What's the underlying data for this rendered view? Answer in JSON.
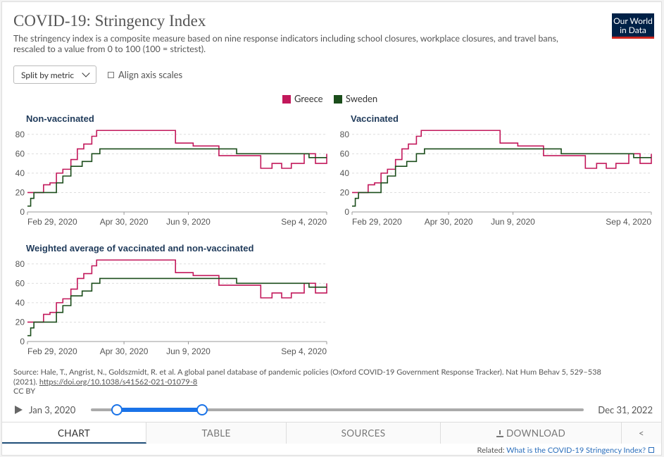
{
  "header": {
    "title": "COVID-19: Stringency Index",
    "subtitle": "The stringency index is a composite measure based on nine response indicators including school closures, workplace closures, and travel bans, rescaled to a value from 0 to 100 (100 = strictest).",
    "logo_line1": "Our World",
    "logo_line2": "in Data"
  },
  "controls": {
    "split_label": "Split by metric",
    "align_label": "Align axis scales"
  },
  "legend": [
    {
      "name": "Greece",
      "color": "#c2185b"
    },
    {
      "name": "Sweden",
      "color": "#1b4d1b"
    }
  ],
  "chart_data": [
    {
      "type": "line",
      "title": "Non-vaccinated",
      "ylim": [
        0,
        85
      ],
      "yticks": [
        0,
        20,
        40,
        60,
        80
      ],
      "xticks": [
        "Feb 29, 2020",
        "Apr 30, 2020",
        "Jun 9, 2020",
        "Sep 4, 2020"
      ],
      "series": [
        {
          "name": "Greece",
          "color": "#c2185b",
          "x": [
            0,
            5,
            10,
            14,
            18,
            22,
            27,
            31,
            35,
            40,
            43,
            48,
            51,
            56,
            60,
            87,
            92,
            103,
            117,
            119,
            133,
            137,
            145,
            150,
            152,
            153,
            155,
            158,
            164,
            168,
            172,
            175,
            179,
            186
          ],
          "y": [
            20,
            20,
            28,
            30,
            40,
            44,
            54,
            65,
            70,
            78,
            84,
            84,
            84,
            84,
            84,
            84,
            71,
            68,
            68,
            58,
            58,
            58,
            45,
            45,
            50,
            50,
            50,
            45,
            50,
            50,
            60,
            60,
            50,
            60
          ]
        },
        {
          "name": "Sweden",
          "color": "#1b4d1b",
          "x": [
            0,
            2,
            4,
            6,
            12,
            15,
            18,
            22,
            27,
            31,
            34,
            40,
            45,
            48,
            60,
            87,
            100,
            117,
            123,
            130,
            133,
            140,
            145,
            150,
            155,
            158,
            164,
            172,
            175,
            179,
            186
          ],
          "y": [
            6,
            14,
            20,
            20,
            20,
            20,
            30,
            37,
            47,
            47,
            52,
            60,
            65,
            65,
            65,
            65,
            65,
            65,
            65,
            60,
            60,
            60,
            60,
            60,
            60,
            60,
            60,
            60,
            56,
            56,
            56
          ]
        }
      ]
    },
    {
      "type": "line",
      "title": "Vaccinated",
      "ylim": [
        0,
        85
      ],
      "yticks": [
        0,
        20,
        40,
        60,
        80
      ],
      "xticks": [
        "Feb 29, 2020",
        "Apr 30, 2020",
        "Jun 9, 2020",
        "Sep 4, 2020"
      ],
      "series": [
        {
          "name": "Greece",
          "color": "#c2185b",
          "x": [
            0,
            5,
            10,
            14,
            18,
            22,
            27,
            31,
            35,
            40,
            43,
            48,
            51,
            56,
            60,
            87,
            92,
            103,
            117,
            119,
            133,
            137,
            145,
            150,
            152,
            153,
            155,
            158,
            164,
            168,
            172,
            175,
            179,
            186
          ],
          "y": [
            20,
            20,
            28,
            30,
            40,
            44,
            54,
            65,
            70,
            78,
            84,
            84,
            84,
            84,
            84,
            84,
            71,
            68,
            68,
            58,
            58,
            58,
            45,
            45,
            50,
            50,
            50,
            45,
            50,
            50,
            60,
            60,
            50,
            60
          ]
        },
        {
          "name": "Sweden",
          "color": "#1b4d1b",
          "x": [
            0,
            2,
            4,
            6,
            12,
            15,
            18,
            22,
            27,
            31,
            34,
            40,
            45,
            48,
            60,
            87,
            100,
            117,
            123,
            130,
            133,
            140,
            145,
            150,
            155,
            158,
            164,
            172,
            175,
            179,
            186
          ],
          "y": [
            6,
            14,
            20,
            20,
            20,
            20,
            30,
            37,
            47,
            47,
            52,
            60,
            65,
            65,
            65,
            65,
            65,
            65,
            65,
            60,
            60,
            60,
            60,
            60,
            60,
            60,
            60,
            60,
            56,
            56,
            56
          ]
        }
      ]
    },
    {
      "type": "line",
      "title": "Weighted average of vaccinated and non-vaccinated",
      "ylim": [
        0,
        85
      ],
      "yticks": [
        0,
        20,
        40,
        60,
        80
      ],
      "xticks": [
        "Feb 29, 2020",
        "Apr 30, 2020",
        "Jun 9, 2020",
        "Sep 4, 2020"
      ],
      "series": [
        {
          "name": "Greece",
          "color": "#c2185b",
          "x": [
            0,
            5,
            10,
            14,
            18,
            22,
            27,
            31,
            35,
            40,
            43,
            48,
            51,
            56,
            60,
            87,
            92,
            103,
            117,
            119,
            133,
            137,
            145,
            150,
            152,
            153,
            155,
            158,
            164,
            168,
            172,
            175,
            179,
            186
          ],
          "y": [
            20,
            20,
            28,
            30,
            40,
            44,
            54,
            65,
            70,
            78,
            84,
            84,
            84,
            84,
            84,
            84,
            71,
            68,
            68,
            58,
            58,
            58,
            45,
            45,
            50,
            50,
            50,
            45,
            50,
            50,
            60,
            60,
            50,
            60
          ]
        },
        {
          "name": "Sweden",
          "color": "#1b4d1b",
          "x": [
            0,
            2,
            4,
            6,
            12,
            15,
            18,
            22,
            27,
            31,
            34,
            40,
            45,
            48,
            60,
            87,
            100,
            117,
            123,
            130,
            133,
            140,
            145,
            150,
            155,
            158,
            164,
            172,
            175,
            179,
            186
          ],
          "y": [
            6,
            14,
            20,
            20,
            20,
            20,
            30,
            37,
            47,
            47,
            52,
            60,
            65,
            65,
            65,
            65,
            65,
            65,
            65,
            60,
            60,
            60,
            60,
            60,
            60,
            60,
            60,
            60,
            56,
            56,
            56
          ]
        }
      ]
    }
  ],
  "source": {
    "text": "Source: Hale, T., Angrist, N., Goldszmidt, R. et al. A global panel database of pandemic policies (Oxford COVID-19 Government Response Tracker). Nat Hum Behav 5, 529–538 (2021).",
    "link": "https://doi.org/10.1038/s41562-021-01079-8",
    "license": "CC BY"
  },
  "timeline": {
    "start": "Jan 3, 2020",
    "end": "Dec 31, 2022"
  },
  "tabs": {
    "chart": "CHART",
    "table": "TABLE",
    "sources": "SOURCES",
    "download": "DOWNLOAD"
  },
  "related": {
    "label": "Related:",
    "link": "What is the COVID-19 Stringency Index?"
  }
}
